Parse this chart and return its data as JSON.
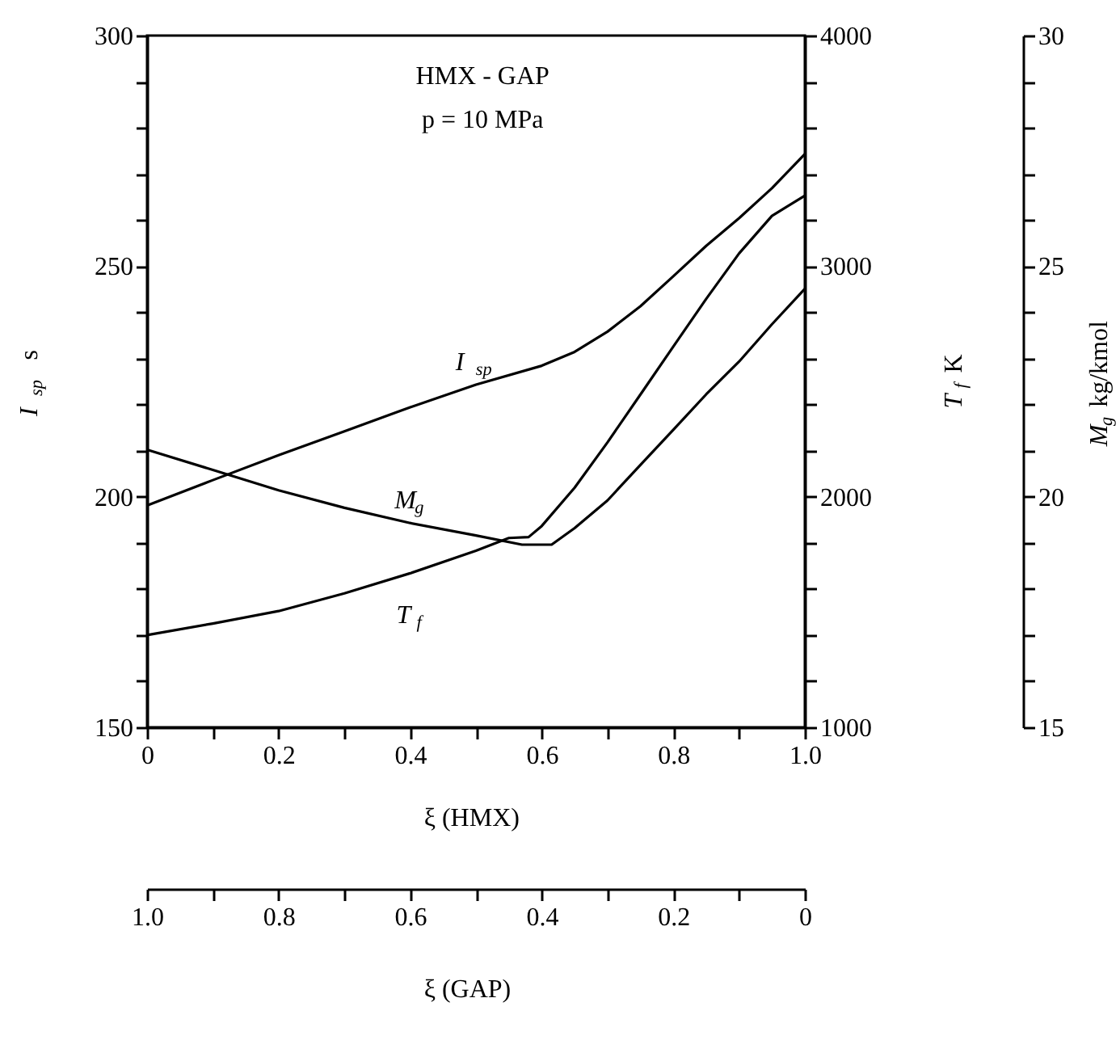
{
  "chart_data": {
    "type": "line",
    "title": "HMX - GAP",
    "subtitle": "p = 10 MPa",
    "xlabel": "ξ (HMX)",
    "ylabel": "I$_{sp}$  s",
    "y2label": "T$_{f}$ K",
    "y3label": "M$_{g}$ kg/kmol",
    "x2label": "ξ (GAP)",
    "xlim": [
      0,
      1.0
    ],
    "xticks": [
      {
        "value": 0,
        "label": "0"
      },
      {
        "value": 0.1,
        "label": null
      },
      0.2,
      {
        "value": 0.3,
        "label": null
      },
      0.4,
      {
        "value": 0.5,
        "label": null
      },
      0.6,
      {
        "value": 0.7,
        "label": null
      },
      0.8,
      {
        "value": 0.9,
        "label": null
      },
      {
        "value": 1.0,
        "label": "1.0"
      }
    ],
    "x2lim": [
      1.0,
      0
    ],
    "x2ticks": [
      {
        "value": 1.0,
        "label": "1.0"
      },
      {
        "value": 0.9,
        "label": null
      },
      0.8,
      {
        "value": 0.7,
        "label": null
      },
      0.6,
      {
        "value": 0.5,
        "label": null
      },
      0.4,
      {
        "value": 0.3,
        "label": null
      },
      0.2,
      {
        "value": 0.1,
        "label": null
      },
      {
        "value": 0,
        "label": "0"
      }
    ],
    "ylim": [
      150,
      300
    ],
    "yticks": [
      150,
      {
        "value": 160,
        "label": null
      },
      {
        "value": 170,
        "label": null
      },
      {
        "value": 180,
        "label": null
      },
      {
        "value": 190,
        "label": null
      },
      200,
      {
        "value": 210,
        "label": null
      },
      {
        "value": 220,
        "label": null
      },
      {
        "value": 230,
        "label": null
      },
      {
        "value": 240,
        "label": null
      },
      250,
      {
        "value": 260,
        "label": null
      },
      {
        "value": 270,
        "label": null
      },
      {
        "value": 280,
        "label": null
      },
      {
        "value": 290,
        "label": null
      },
      300
    ],
    "y2lim": [
      1000,
      4000
    ],
    "y2ticks": [
      1000,
      {
        "value": 1200,
        "label": null
      },
      {
        "value": 1400,
        "label": null
      },
      {
        "value": 1600,
        "label": null
      },
      {
        "value": 1800,
        "label": null
      },
      2000,
      {
        "value": 2200,
        "label": null
      },
      {
        "value": 2400,
        "label": null
      },
      {
        "value": 2600,
        "label": null
      },
      {
        "value": 2800,
        "label": null
      },
      3000,
      {
        "value": 3200,
        "label": null
      },
      {
        "value": 3400,
        "label": null
      },
      {
        "value": 3600,
        "label": null
      },
      {
        "value": 3800,
        "label": null
      },
      4000
    ],
    "y3lim": [
      15,
      30
    ],
    "y3ticks": [
      15,
      {
        "value": 16,
        "label": null
      },
      {
        "value": 17,
        "label": null
      },
      {
        "value": 18,
        "label": null
      },
      {
        "value": 19,
        "label": null
      },
      20,
      {
        "value": 21,
        "label": null
      },
      {
        "value": 22,
        "label": null
      },
      {
        "value": 23,
        "label": null
      },
      {
        "value": 24,
        "label": null
      },
      25,
      {
        "value": 26,
        "label": null
      },
      {
        "value": 27,
        "label": null
      },
      {
        "value": 28,
        "label": null
      },
      {
        "value": 29,
        "label": null
      },
      30
    ],
    "series": [
      {
        "name": "I$_{sp}$",
        "color": "#000000",
        "axis": "y",
        "x": [
          0,
          0.1,
          0.2,
          0.3,
          0.4,
          0.5,
          0.6,
          0.65,
          0.7,
          0.75,
          0.8,
          0.85,
          0.9,
          0.95,
          1.0
        ],
        "values": [
          198.1,
          203.6,
          209,
          214.2,
          219.4,
          224.3,
          228.4,
          231.4,
          235.8,
          241.3,
          247.8,
          254.4,
          260.4,
          266.9,
          274.3
        ]
      },
      {
        "name": "T$_{f}$",
        "color": "#000000",
        "axis": "y2",
        "x": [
          0,
          0.1,
          0.2,
          0.3,
          0.4,
          0.5,
          0.55,
          0.58,
          0.6,
          0.65,
          0.7,
          0.75,
          0.8,
          0.85,
          0.9,
          0.95,
          1.0
        ],
        "values": [
          1400,
          1450,
          1504,
          1581,
          1668,
          1766,
          1821,
          1825,
          1873,
          2039,
          2236,
          2443,
          2651,
          2858,
          3055,
          3218,
          3306
        ]
      },
      {
        "name": "M$_{g}$",
        "color": "#000000",
        "axis": "y3",
        "x": [
          0,
          0.1,
          0.2,
          0.3,
          0.4,
          0.5,
          0.57,
          0.615,
          0.65,
          0.7,
          0.75,
          0.8,
          0.85,
          0.9,
          0.95,
          1.0
        ],
        "values": [
          21.02,
          20.58,
          20.14,
          19.76,
          19.43,
          19.16,
          18.96,
          18.96,
          19.32,
          19.92,
          20.69,
          21.45,
          22.22,
          22.93,
          23.74,
          24.51
        ]
      }
    ]
  }
}
